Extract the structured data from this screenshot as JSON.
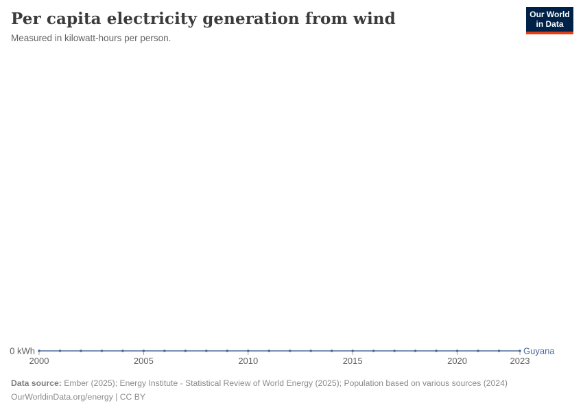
{
  "header": {
    "title": "Per capita electricity generation from wind",
    "subtitle": "Measured in kilowatt-hours per person."
  },
  "logo": {
    "line1": "Our World",
    "line2": "in Data",
    "bg_color": "#002147",
    "stripe_color": "#e63e13"
  },
  "chart_data": {
    "type": "line",
    "x": [
      2000,
      2001,
      2002,
      2003,
      2004,
      2005,
      2006,
      2007,
      2008,
      2009,
      2010,
      2011,
      2012,
      2013,
      2014,
      2015,
      2016,
      2017,
      2018,
      2019,
      2020,
      2021,
      2022,
      2023
    ],
    "series": [
      {
        "name": "Guyana",
        "color": "#4c6a9c",
        "values": [
          0,
          0,
          0,
          0,
          0,
          0,
          0,
          0,
          0,
          0,
          0,
          0,
          0,
          0,
          0,
          0,
          0,
          0,
          0,
          0,
          0,
          0,
          0,
          0
        ]
      }
    ],
    "title": "Per capita electricity generation from wind",
    "xlabel": "",
    "ylabel": "kilowatt-hours per person",
    "xlim": [
      2000,
      2023
    ],
    "ylim": [
      0,
      0
    ],
    "grid": false,
    "legend_position": "end-of-line",
    "x_ticks": [
      2000,
      2005,
      2010,
      2015,
      2020,
      2023
    ],
    "y_zero_label": "0 kWh",
    "axis_text_color": "#5e5e5e",
    "tick_color": "#a5a5a5"
  },
  "footer": {
    "datasource_label": "Data source:",
    "datasource_text": " Ember (2025); Energy Institute - Statistical Review of World Energy (2025); Population based on various sources (2024)",
    "license_line": "OurWorldinData.org/energy | CC BY"
  }
}
